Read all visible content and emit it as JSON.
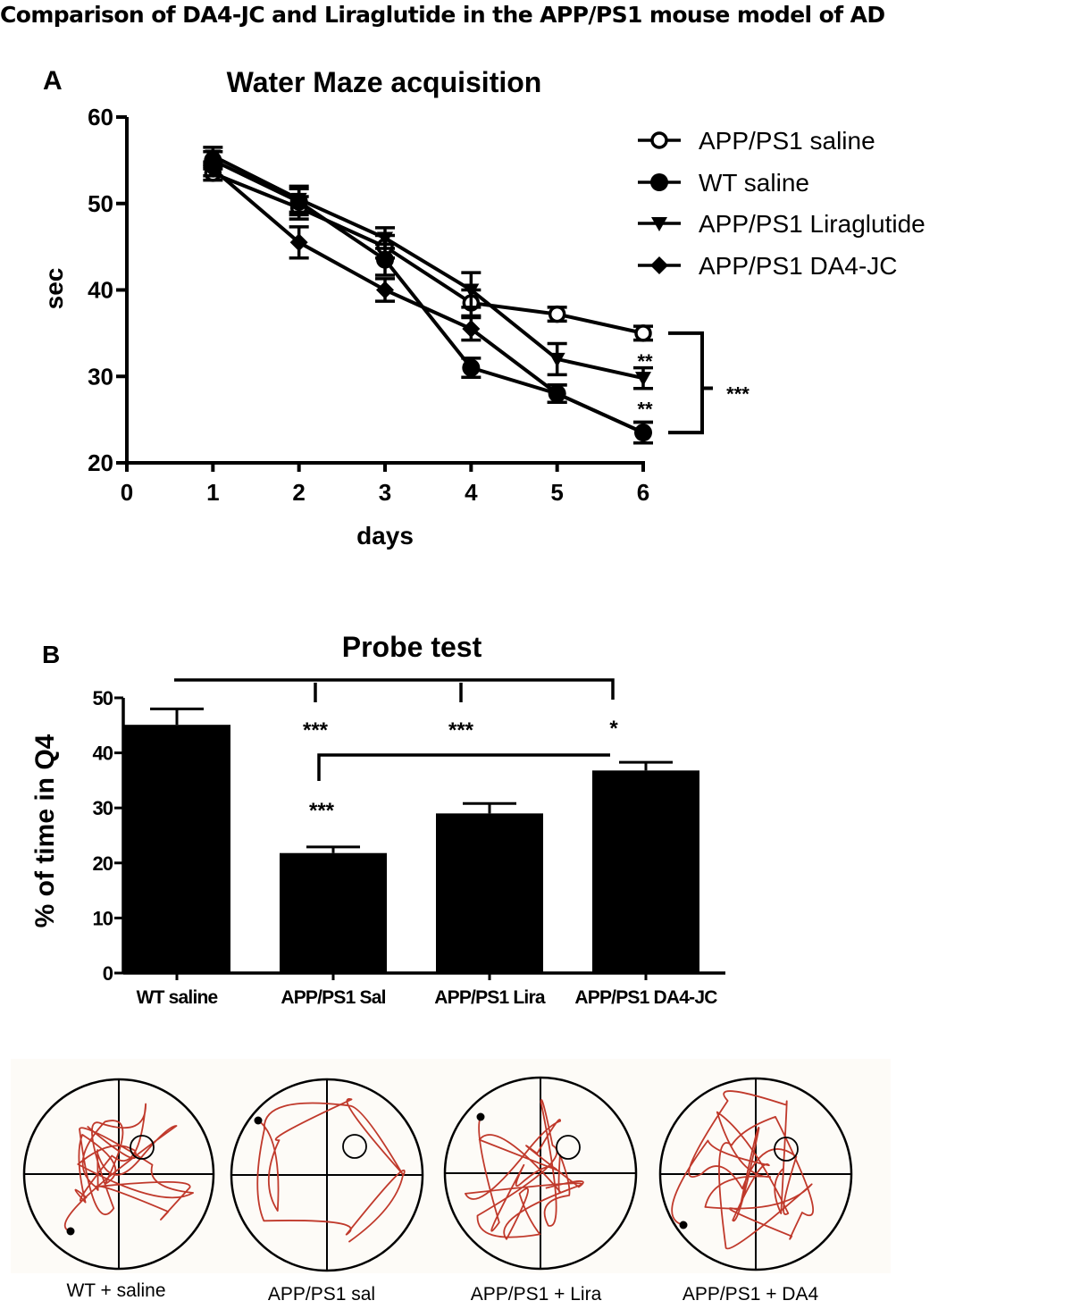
{
  "figure": {
    "title": "Comparison of DA4-JC and Liraglutide in the APP/PS1 mouse model of AD"
  },
  "chart_data": [
    {
      "panel": "A",
      "type": "line",
      "title": "Water Maze acquisition",
      "xlabel": "days",
      "ylabel": "sec",
      "xlim": [
        0,
        6
      ],
      "ylim": [
        20,
        60
      ],
      "x_ticks": [
        "0",
        "1",
        "2",
        "3",
        "4",
        "5",
        "6"
      ],
      "y_ticks": [
        "20",
        "30",
        "40",
        "50",
        "60"
      ],
      "x": [
        1,
        2,
        3,
        4,
        5,
        6
      ],
      "legend_position": "top-right",
      "series": [
        {
          "name": "APP/PS1 saline",
          "marker": "open-circle",
          "values": [
            53.5,
            49.5,
            45.0,
            38.5,
            37.2,
            35.0
          ],
          "errors": [
            0.8,
            1.3,
            1.3,
            1.5,
            0.8,
            0.8
          ]
        },
        {
          "name": "WT saline",
          "marker": "filled-circle",
          "values": [
            55.0,
            50.2,
            43.5,
            31.0,
            28.0,
            23.5
          ],
          "errors": [
            1.0,
            1.5,
            1.8,
            1.1,
            1.0,
            1.2
          ]
        },
        {
          "name": "APP/PS1 Liraglutide",
          "marker": "filled-triangle-down",
          "values": [
            55.5,
            50.5,
            46.0,
            40.0,
            32.0,
            29.8
          ],
          "errors": [
            1.0,
            1.5,
            1.2,
            2.0,
            1.8,
            1.2
          ]
        },
        {
          "name": "APP/PS1 DA4-JC",
          "marker": "filled-diamond",
          "values": [
            54.0,
            45.5,
            40.0,
            35.5,
            28.0,
            23.5
          ],
          "errors": [
            0.8,
            1.8,
            1.3,
            1.3,
            1.0,
            1.2
          ]
        }
      ],
      "annotations": [
        {
          "text": "**",
          "between": [
            "APP/PS1 saline",
            "APP/PS1 Liraglutide"
          ],
          "day": 6
        },
        {
          "text": "**",
          "between": [
            "APP/PS1 Liraglutide",
            "APP/PS1 DA4-JC"
          ],
          "day": 6
        },
        {
          "text": "***",
          "bracket": [
            "APP/PS1 saline",
            "WT saline"
          ],
          "day": 6
        }
      ]
    },
    {
      "panel": "B",
      "type": "bar",
      "title": "Probe test",
      "xlabel": "",
      "ylabel": "% of time in Q4",
      "ylim": [
        0,
        50
      ],
      "y_ticks": [
        "0",
        "10",
        "20",
        "30",
        "40",
        "50"
      ],
      "categories": [
        "WT saline",
        "APP/PS1 Sal",
        "APP/PS1 Lira",
        "APP/PS1 DA4-JC"
      ],
      "values": [
        45.1,
        21.8,
        29.0,
        36.8
      ],
      "errors": [
        2.9,
        1.1,
        1.8,
        1.5
      ],
      "annotations": [
        {
          "text": "***",
          "compare": [
            "WT saline",
            "APP/PS1 Sal"
          ]
        },
        {
          "text": "***",
          "compare": [
            "WT saline",
            "APP/PS1 Lira"
          ]
        },
        {
          "text": "*",
          "compare": [
            "WT saline",
            "APP/PS1 DA4-JC"
          ]
        },
        {
          "text": "***",
          "compare": [
            "APP/PS1 Sal",
            "APP/PS1 DA4-JC"
          ]
        }
      ]
    }
  ],
  "panels": {
    "a_label": "A",
    "b_label": "B"
  },
  "tracks": {
    "path_color": "#c0392b",
    "items": [
      {
        "label": "WT + saline"
      },
      {
        "label": "APP/PS1 sal"
      },
      {
        "label": "APP/PS1 + Lira"
      },
      {
        "label": "APP/PS1 + DA4"
      }
    ]
  }
}
